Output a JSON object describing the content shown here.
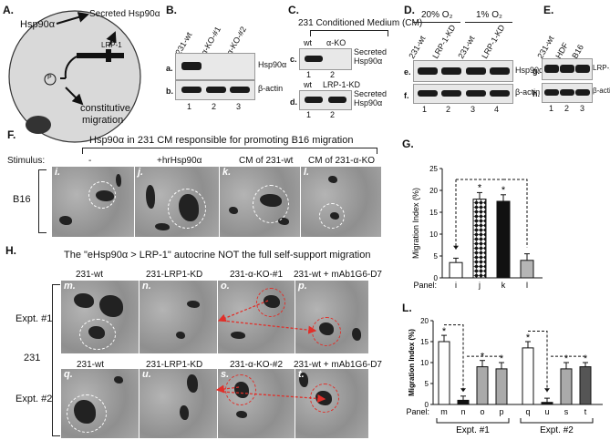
{
  "panels": {
    "A": {
      "label": "A.",
      "hsp": "Hsp90α",
      "secreted": "Secreted Hsp90α",
      "receptor": "LRP-1",
      "p": "P",
      "constitutive": "constitutive",
      "migration": "migration"
    },
    "B": {
      "label": "B.",
      "lanes": [
        "231-wt",
        "α-KO-#1",
        "α-KO-#2"
      ],
      "row_a": "a.",
      "row_b": "b.",
      "band_a": "Hsp90α",
      "band_b": "β-actin",
      "nums": [
        "1",
        "2",
        "3"
      ]
    },
    "C": {
      "label": "C.",
      "title": "231 Conditioned Medium (CM)",
      "lanes_c": [
        "wt",
        "α-KO"
      ],
      "lanes_d": [
        "wt",
        "LRP-1-KD"
      ],
      "row_c": "c.",
      "row_d": "d.",
      "band_c": "Secreted Hsp90α",
      "band_d": "Secreted Hsp90α",
      "nums": [
        "1",
        "2"
      ]
    },
    "D": {
      "label": "D.",
      "o2_a": "20% O₂",
      "o2_b": "1% O₂",
      "lanes": [
        "231-wt",
        "LRP-1-KD",
        "231-wt",
        "LRP-1-KD"
      ],
      "row_e": "e.",
      "row_f": "f.",
      "band_e": "Hsp90α",
      "band_f": "β-actin",
      "nums": [
        "1",
        "2",
        "3",
        "4"
      ]
    },
    "E": {
      "label": "E.",
      "lanes": [
        "231-wt",
        "HDF",
        "B16"
      ],
      "row_g": "g.",
      "row_h": "h.",
      "band_g": "LRP-1",
      "band_h": "β-actin",
      "nums": [
        "1",
        "2",
        "3"
      ]
    },
    "F": {
      "label": "F.",
      "title": "Hsp90α in 231 CM responsible for promoting B16 migration",
      "stimulus": "Stimulus:",
      "stims": [
        "-",
        "+hrHsp90α",
        "CM of 231-wt",
        "CM of 231-α-KO"
      ],
      "cell": "B16",
      "sub": [
        "i.",
        "j.",
        "k.",
        "l."
      ]
    },
    "G": {
      "label": "G.",
      "panel": "Panel:",
      "sub": [
        "i",
        "j",
        "k",
        "l"
      ],
      "star": "*"
    },
    "H": {
      "label": "H.",
      "title": "The \"eHsp90α > LRP-1\" autocrine NOT the full self-support migration",
      "row1": [
        "231-wt",
        "231-LRP1-KD",
        "231-α-KO-#1",
        "231-wt + mAb1G6-D7"
      ],
      "row2": [
        "231-wt",
        "231-LRP1-KD",
        "231-α-KO-#2",
        "231-wt + mAb1G6-D7"
      ],
      "sub1": [
        "m.",
        "n.",
        "o.",
        "p."
      ],
      "sub2": [
        "q.",
        "u.",
        "s.",
        "t."
      ],
      "expt1": "Expt. #1",
      "expt2": "Expt. #2",
      "cell": "231"
    },
    "L": {
      "label": "L.",
      "panel": "Panel:",
      "sub": [
        "m",
        "n",
        "o",
        "p",
        "q",
        "u",
        "s",
        "t"
      ],
      "expt1": "Expt. #1",
      "expt2": "Expt. #2",
      "star": "*"
    }
  },
  "chart_data": [
    {
      "type": "bar",
      "title": "",
      "xlabel": "Panel",
      "ylabel": "Migration Index (%)",
      "ylim": [
        0,
        25
      ],
      "yticks": [
        0,
        5,
        10,
        15,
        20,
        25
      ],
      "categories": [
        "i",
        "j",
        "k",
        "l"
      ],
      "values": [
        3.5,
        18,
        17.5,
        4
      ],
      "errors": [
        1,
        1.5,
        1.5,
        1.5
      ],
      "significant": [
        false,
        true,
        true,
        false
      ]
    },
    {
      "type": "bar",
      "title": "",
      "xlabel": "Panel",
      "ylabel": "Migration Index (%)",
      "ylim": [
        0,
        20
      ],
      "yticks": [
        0,
        5,
        10,
        15,
        20
      ],
      "categories": [
        "m",
        "n",
        "o",
        "p",
        "q",
        "u",
        "s",
        "t"
      ],
      "values": [
        15,
        1,
        9,
        8.5,
        13.5,
        0.5,
        8.5,
        9
      ],
      "errors": [
        1.5,
        1,
        1.5,
        1.5,
        1.5,
        1,
        1.5,
        1
      ],
      "significant": [
        true,
        false,
        true,
        true,
        true,
        false,
        true,
        true
      ],
      "groups": [
        "Expt. #1",
        "Expt. #1",
        "Expt. #1",
        "Expt. #1",
        "Expt. #2",
        "Expt. #2",
        "Expt. #2",
        "Expt. #2"
      ]
    }
  ]
}
